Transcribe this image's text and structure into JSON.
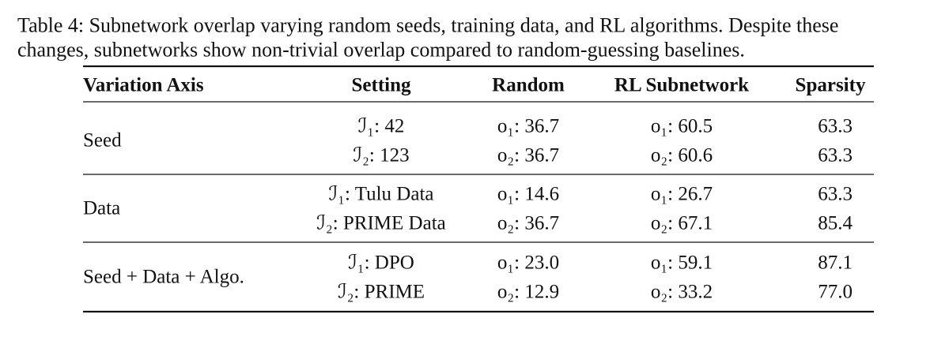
{
  "caption": {
    "lines": [
      "Table 4: Subnetwork overlap varying random seeds, training data, and RL algorithms. Despite these",
      "changes, subnetworks show non-trivial overlap compared to random-guessing baselines."
    ]
  },
  "table": {
    "header": [
      "Variation Axis",
      "Setting",
      "Random",
      "RL Subnetwork",
      "Sparsity"
    ],
    "groups": [
      {
        "axis": "Seed",
        "rows": [
          [
            "ℐ₁: 42",
            "o₁: 36.7",
            "o₁: 60.5",
            "63.3"
          ],
          [
            "ℐ₂: 123",
            "o₂: 36.7",
            "o₂: 60.6",
            "63.3"
          ]
        ]
      },
      {
        "axis": "Data",
        "rows": [
          [
            "ℐ₁: Tulu Data",
            "o₁: 14.6",
            "o₁: 26.7",
            "63.3"
          ],
          [
            "ℐ₂: PRIME Data",
            "o₂: 36.7",
            "o₂: 67.1",
            "85.4"
          ]
        ]
      },
      {
        "axis": "Seed + Data + Algo.",
        "rows": [
          [
            "ℐ₁: DPO",
            "o₁: 23.0",
            "o₁: 59.1",
            "87.1"
          ],
          [
            "ℐ₂: PRIME",
            "o₂: 12.9",
            "o₂: 33.2",
            "77.0"
          ]
        ]
      }
    ]
  }
}
